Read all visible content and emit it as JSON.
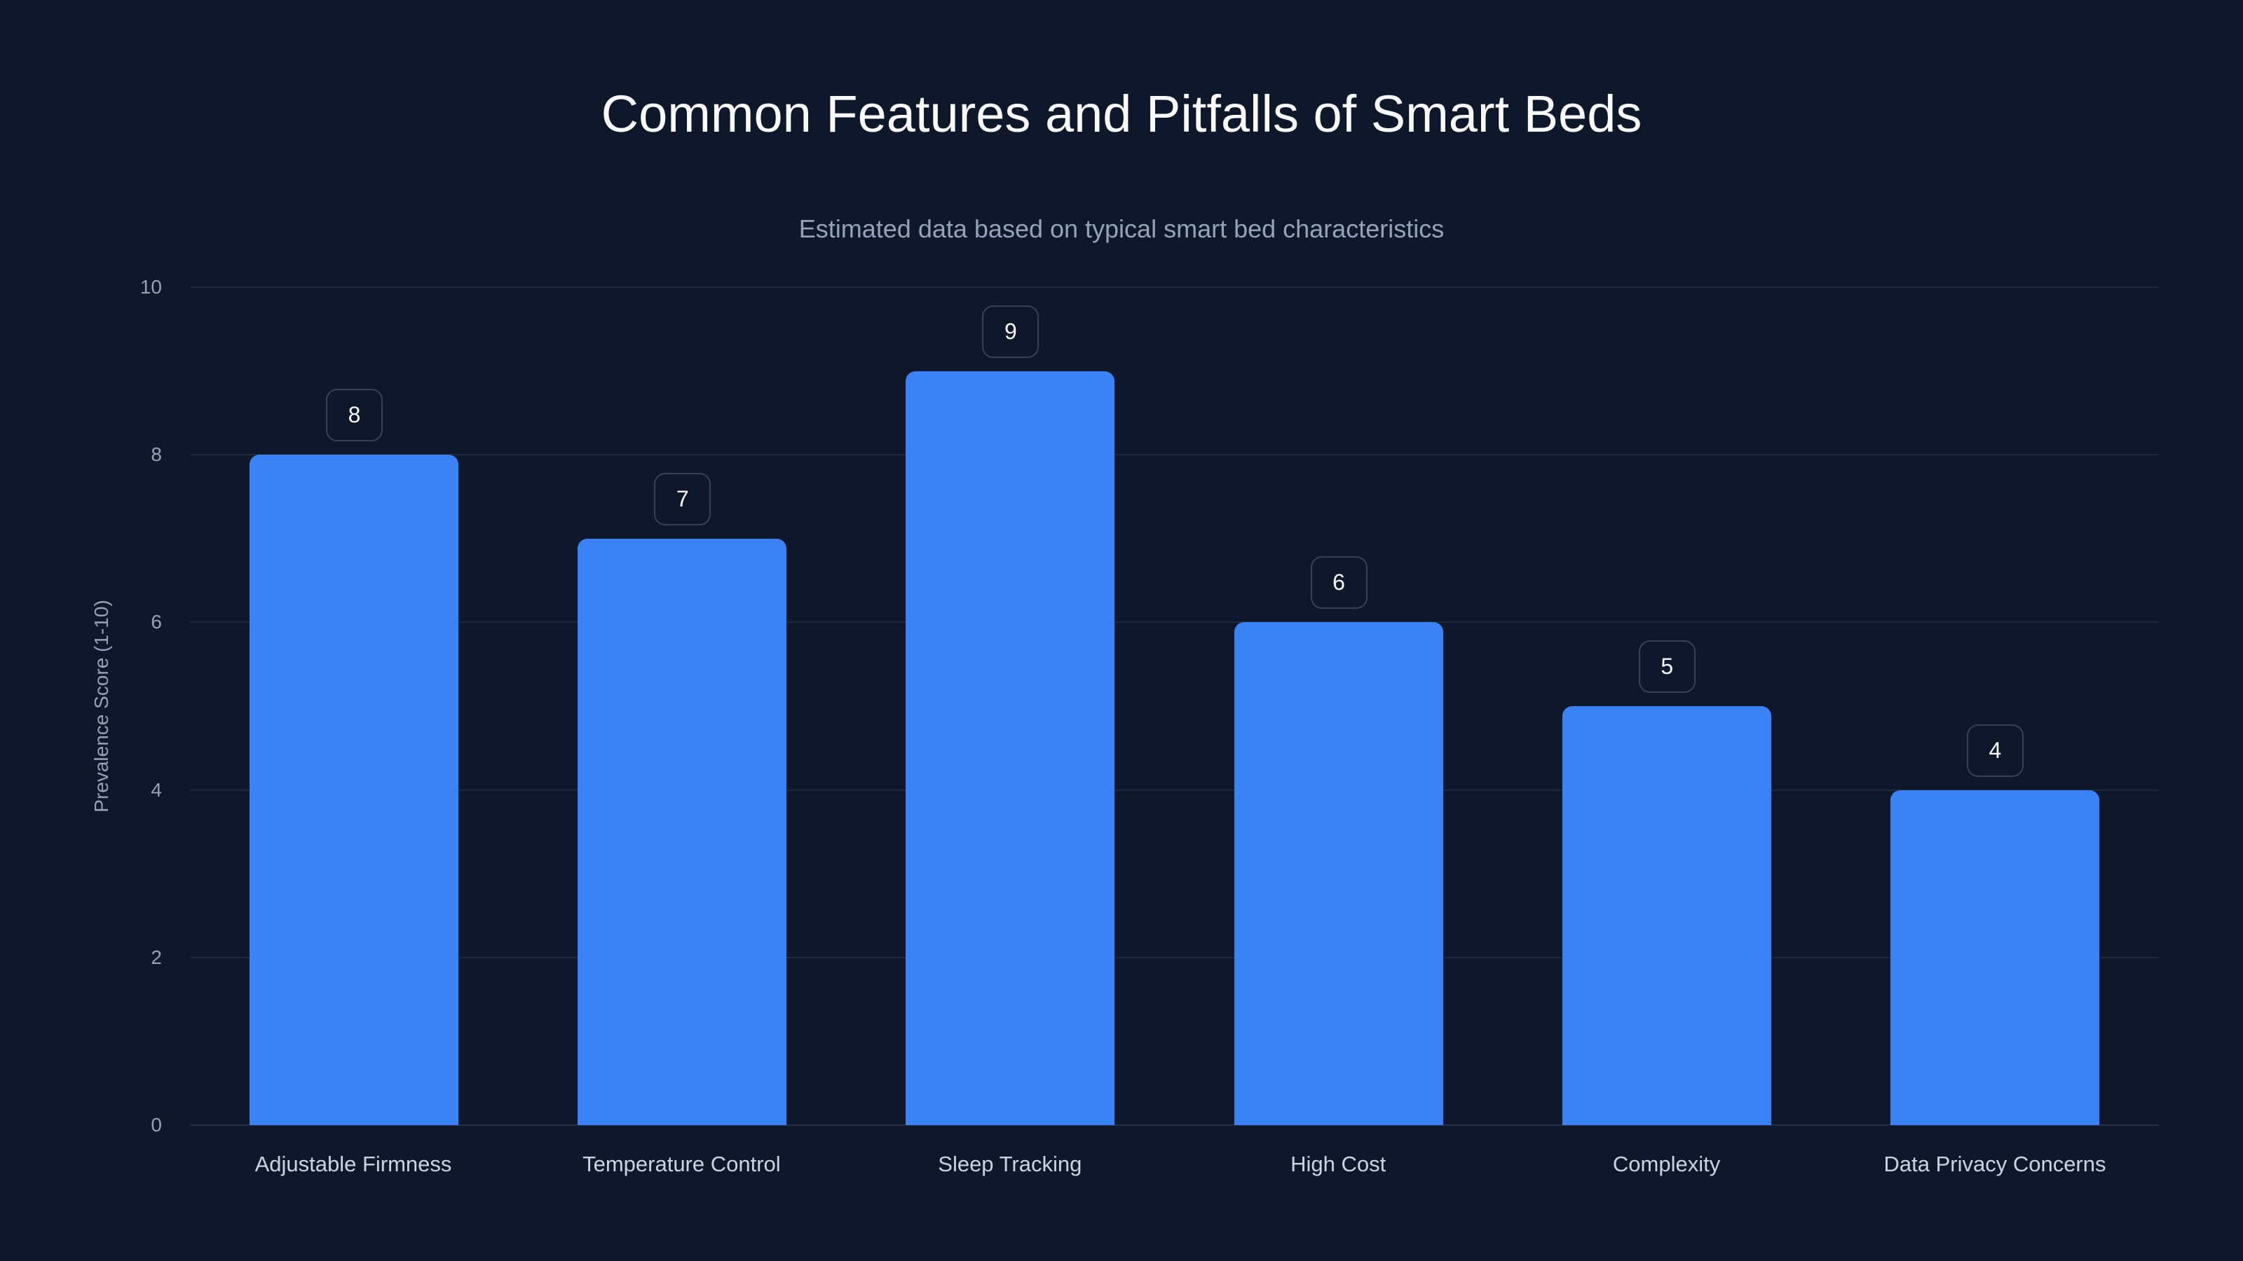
{
  "chart_data": {
    "type": "bar",
    "title": "Common Features and Pitfalls of Smart Beds",
    "subtitle": "Estimated data based on typical smart bed characteristics",
    "xlabel": "",
    "ylabel": "Prevalence Score (1-10)",
    "categories": [
      "Adjustable Firmness",
      "Temperature Control",
      "Sleep Tracking",
      "High Cost",
      "Complexity",
      "Data Privacy Concerns"
    ],
    "values": [
      8,
      7,
      9,
      6,
      5,
      4
    ],
    "ylim": [
      0,
      10
    ],
    "yticks": [
      "0",
      "2",
      "4",
      "6",
      "8",
      "10"
    ],
    "grid": true,
    "legend": null,
    "colors": {
      "bar": "#3b82f6",
      "background": "#0f172a",
      "grid": "#1e293b",
      "title": "#f8fafc",
      "muted": "#94a3b8",
      "label": "#cbd5e1"
    }
  }
}
